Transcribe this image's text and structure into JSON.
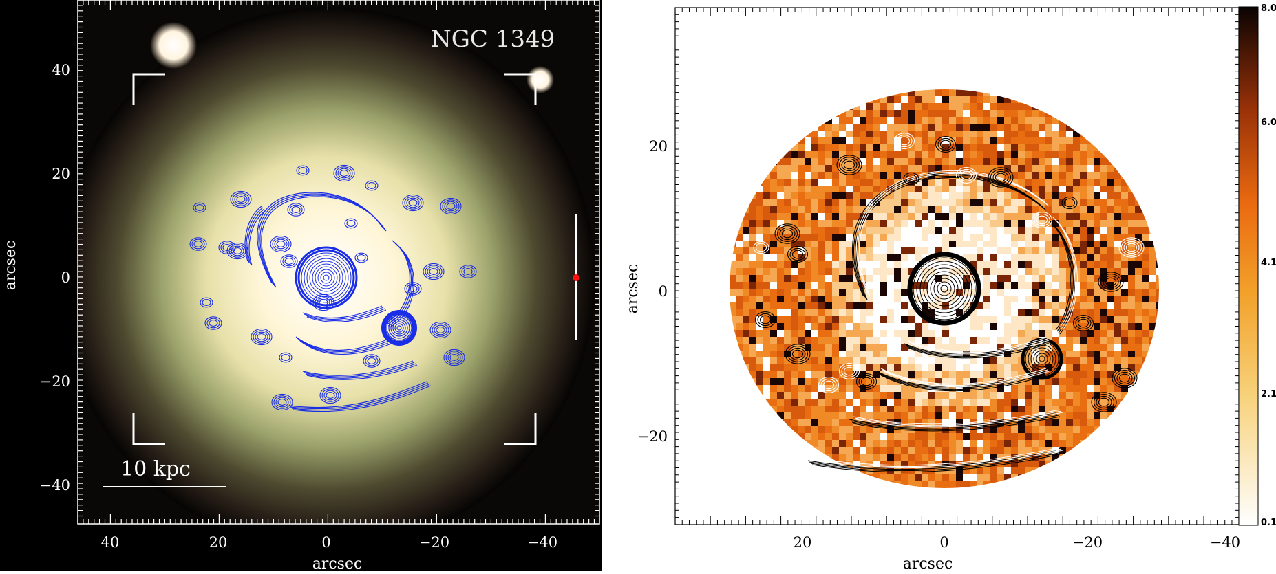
{
  "left_panel": {
    "title": "NGC 1349",
    "scalebar_label": "10 kpc",
    "xlabel": "arcsec",
    "ylabel": "arcsec",
    "xticks": [
      "40",
      "20",
      "0",
      "−20",
      "−40"
    ],
    "yticks": [
      "40",
      "20",
      "0",
      "−20",
      "−40"
    ],
    "contour_color": "#1a2ee8"
  },
  "right_panel": {
    "xlabel": "arcsec",
    "ylabel": "arcsec",
    "xticks": [
      "20",
      "0",
      "−20",
      "−40"
    ],
    "yticks": [
      "20",
      "0",
      "−20"
    ],
    "colorbar_ticks": [
      "8.0",
      "6.0",
      "4.1",
      "2.1",
      "0.1"
    ]
  }
}
